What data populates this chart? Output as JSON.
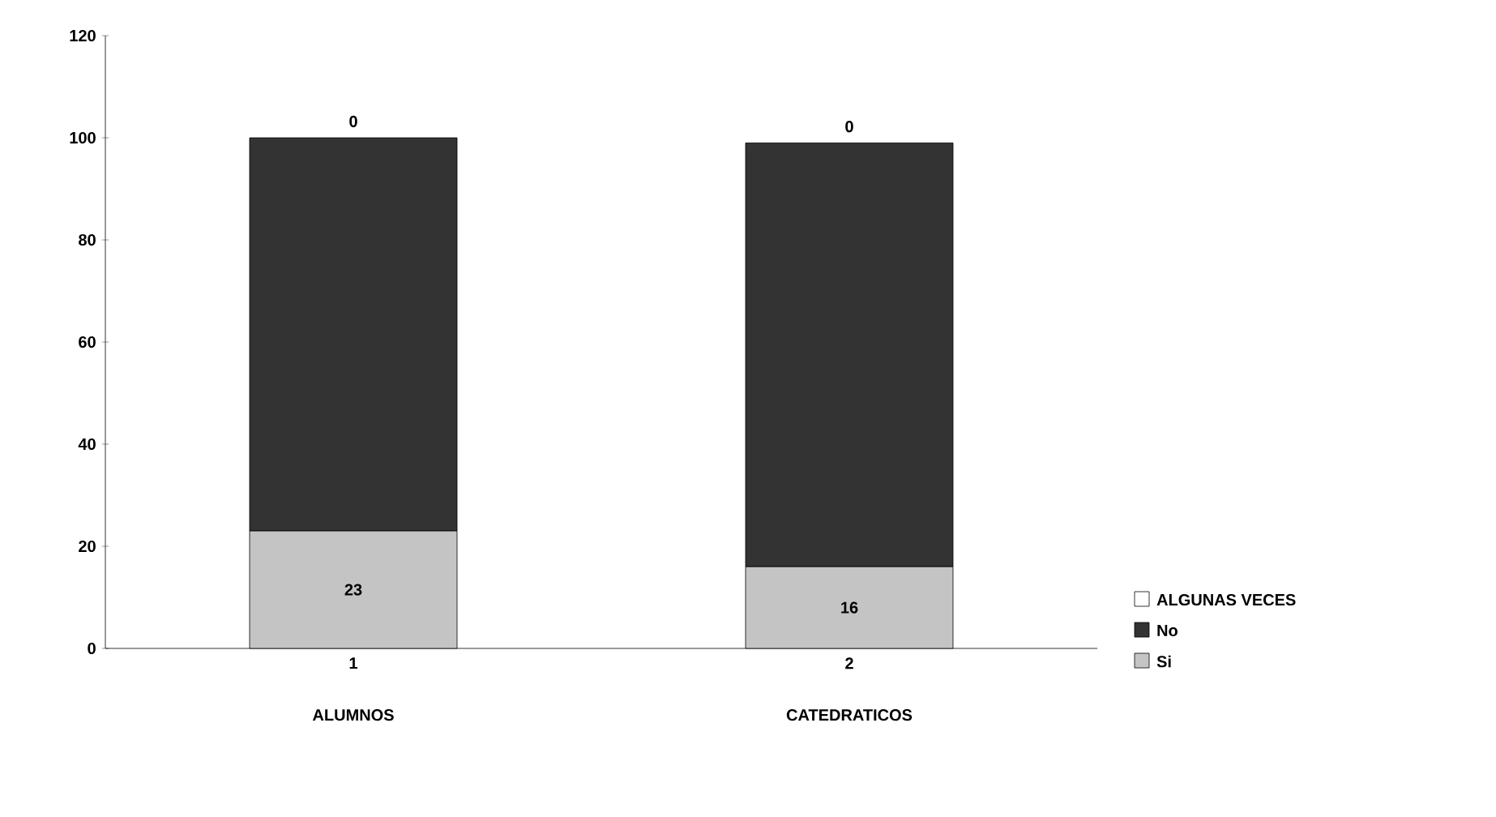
{
  "chart_data": {
    "type": "bar",
    "stacked": true,
    "categories": [
      "1",
      "2"
    ],
    "series": [
      {
        "name": "Si",
        "color": "#c4c4c4",
        "values": [
          23,
          16
        ],
        "value_labels": [
          "23",
          "16"
        ]
      },
      {
        "name": "No",
        "color": "#333333",
        "values": [
          77,
          83
        ],
        "value_labels": [
          null,
          null
        ]
      },
      {
        "name": "ALGUNAS VECES",
        "color": "#ffffff",
        "values": [
          0,
          0
        ],
        "value_labels": [
          "0",
          "0"
        ]
      }
    ],
    "annotations": [
      "ALUMNOS",
      "CATEDRATICOS"
    ],
    "ylim": [
      0,
      120
    ],
    "yticks": [
      0,
      20,
      40,
      60,
      80,
      100,
      120
    ],
    "grid": false,
    "legend": "right"
  }
}
